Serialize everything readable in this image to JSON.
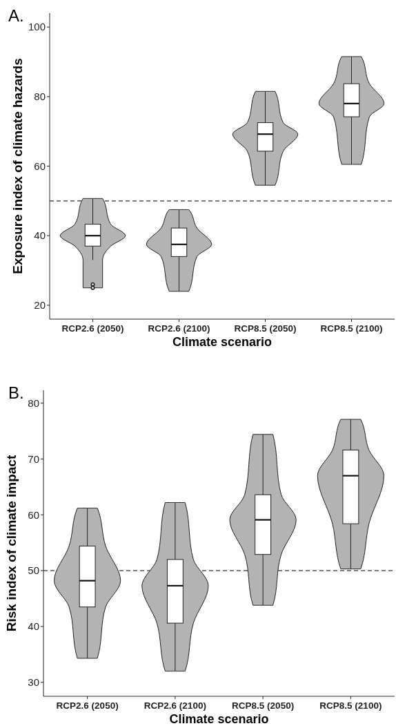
{
  "chart_data": [
    {
      "type": "box",
      "title": "A.",
      "xlabel": "Climate scenario",
      "ylabel": "Exposure index of climate hazards",
      "categories": [
        "RCP2.6 (2050)",
        "RCP2.6 (2100)",
        "RCP8.5 (2050)",
        "RCP8.5 (2100)"
      ],
      "ylim": [
        16,
        104
      ],
      "yticks": [
        20,
        40,
        60,
        80,
        100
      ],
      "grid": false,
      "series": [
        {
          "color": "#ffffff",
          "boxes": [
            {
              "low": 33,
              "q1": 37,
              "median": 40,
              "q3": 43.3,
              "high": 50.7,
              "outliers": [
                26,
                25
              ]
            },
            {
              "low": 24,
              "q1": 34,
              "median": 37.5,
              "q3": 42.2,
              "high": 47.5
            },
            {
              "low": 54.5,
              "q1": 64.3,
              "median": 69.2,
              "q3": 72.5,
              "high": 81.5
            },
            {
              "low": 60.5,
              "q1": 74.2,
              "median": 78,
              "q3": 83.7,
              "high": 91.5
            }
          ]
        }
      ],
      "ref_lines": [
        {
          "axis": "y",
          "value": 50,
          "line_style": "dashed"
        }
      ]
    },
    {
      "type": "box",
      "title": "B.",
      "xlabel": "Climate scenario",
      "ylabel": "Risk index of climate impact",
      "categories": [
        "RCP2.6 (2050)",
        "RCP2.6 (2100)",
        "RCP8.5 (2050)",
        "RCP8.5 (2100)"
      ],
      "ylim": [
        27.5,
        82.3
      ],
      "yticks": [
        30,
        40,
        50,
        60,
        70,
        80
      ],
      "grid": false,
      "series": [
        {
          "color": "#ffffff",
          "boxes": [
            {
              "low": 34.3,
              "q1": 43.5,
              "median": 48.2,
              "q3": 54.4,
              "high": 61.2
            },
            {
              "low": 32,
              "q1": 40.6,
              "median": 47.3,
              "q3": 52,
              "high": 62.2
            },
            {
              "low": 43.8,
              "q1": 52.9,
              "median": 59.1,
              "q3": 63.6,
              "high": 74.4
            },
            {
              "low": 50.3,
              "q1": 58.4,
              "median": 67,
              "q3": 71.6,
              "high": 77.1
            }
          ]
        }
      ],
      "ref_lines": [
        {
          "axis": "y",
          "value": 50,
          "line_style": "dashed"
        }
      ]
    }
  ]
}
